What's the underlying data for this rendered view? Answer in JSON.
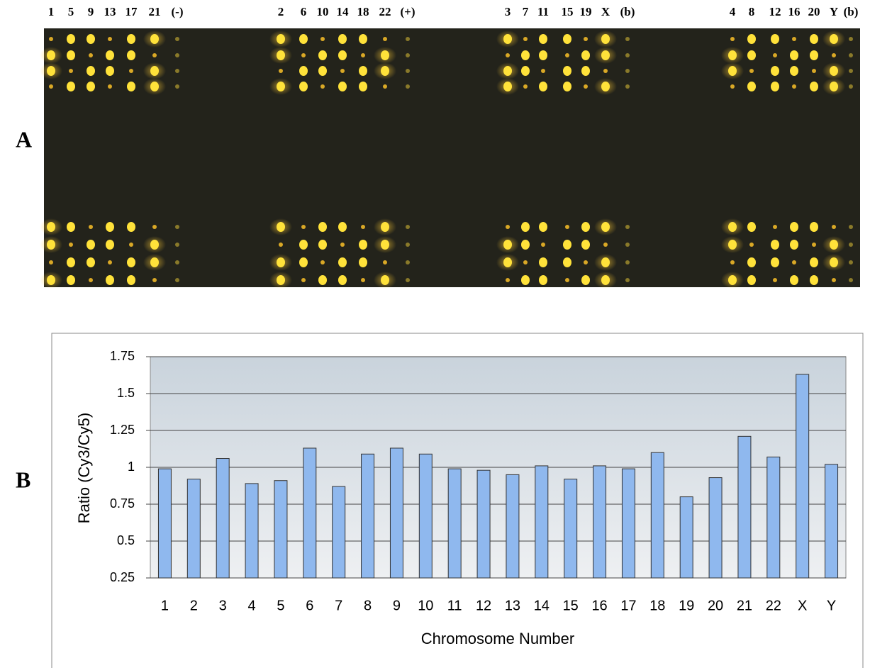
{
  "panel_labels": [
    "A",
    "B"
  ],
  "array_labels": [
    [
      "1",
      "5",
      "9",
      "13",
      "17",
      "21",
      "(-)"
    ],
    [
      "2",
      "6",
      "10",
      "14",
      "18",
      "22",
      "(+)"
    ],
    [
      "3",
      "7",
      "11",
      "15",
      "19",
      "X",
      "(b)"
    ],
    [
      "4",
      "8",
      "12",
      "16",
      "20",
      "Y",
      "(b)"
    ]
  ],
  "chart_data": {
    "type": "bar",
    "x_label": "Chromosome Number",
    "y_label": "Ratio (Cy3/Cy5)",
    "categories": [
      "1",
      "2",
      "3",
      "4",
      "5",
      "6",
      "7",
      "8",
      "9",
      "10",
      "11",
      "12",
      "13",
      "14",
      "15",
      "16",
      "17",
      "18",
      "19",
      "20",
      "21",
      "22",
      "X",
      "Y"
    ],
    "values": [
      0.99,
      0.92,
      1.06,
      0.89,
      0.91,
      1.13,
      0.87,
      1.09,
      1.13,
      1.09,
      0.99,
      0.98,
      0.95,
      1.01,
      0.92,
      1.01,
      0.99,
      1.1,
      0.8,
      0.93,
      1.21,
      1.07,
      1.63,
      1.02
    ],
    "color": "#8fb8ee",
    "ylim": [
      0.25,
      1.75
    ],
    "yticks": [
      0.25,
      0.5,
      0.75,
      1,
      1.25,
      1.5,
      1.75
    ],
    "grid": true
  }
}
